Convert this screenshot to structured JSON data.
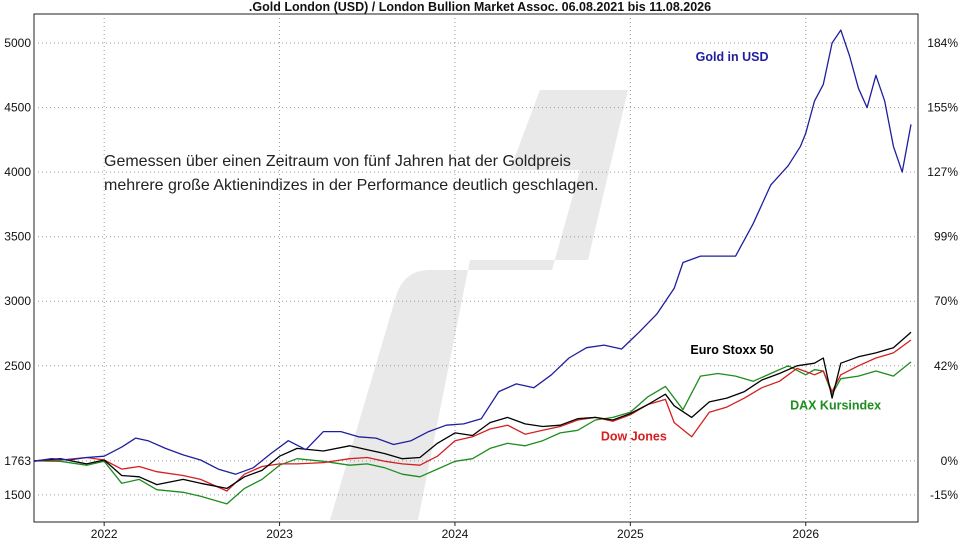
{
  "chart_data": {
    "type": "line",
    "title": ".Gold London (USD) / London Bullion Market Assoc. 06.08.2021 bis 11.08.2026",
    "annotation": [
      "Gemessen über einen Zeitraum von fünf Jahren hat der Goldpreis",
      "mehrere große Aktienindizes in der Performance deutlich geschlagen."
    ],
    "grid": true,
    "x_range": [
      2021.6,
      2026.64
    ],
    "x_ticks": [
      "2022",
      "2023",
      "2024",
      "2025",
      "2026"
    ],
    "y_left": {
      "range": [
        1290,
        5225
      ],
      "ticks": [
        "5000",
        "4500",
        "4000",
        "3500",
        "3000",
        "2500",
        "1763",
        "1500"
      ],
      "base": 1763
    },
    "y_right": {
      "ticks": [
        "184%",
        "155%",
        "127%",
        "99%",
        "70%",
        "42%",
        "0%",
        "-15%"
      ]
    },
    "colors": {
      "gold": "#1f1f9e",
      "euro": "#000000",
      "dow": "#d42020",
      "dax": "#1e8c1e"
    },
    "series": [
      {
        "name": "Gold in USD",
        "x": [
          2021.6,
          2021.7,
          2021.8,
          2021.9,
          2022.0,
          2022.1,
          2022.18,
          2022.25,
          2022.35,
          2022.45,
          2022.55,
          2022.65,
          2022.75,
          2022.85,
          2022.95,
          2023.05,
          2023.15,
          2023.25,
          2023.35,
          2023.45,
          2023.55,
          2023.65,
          2023.75,
          2023.85,
          2023.95,
          2024.05,
          2024.15,
          2024.25,
          2024.35,
          2024.45,
          2024.55,
          2024.65,
          2024.75,
          2024.85,
          2024.95,
          2025.05,
          2025.15,
          2025.25,
          2025.3,
          2025.4,
          2025.5,
          2025.6,
          2025.7,
          2025.8,
          2025.9,
          2025.97,
          2026.0,
          2026.05,
          2026.1,
          2026.15,
          2026.2,
          2026.25,
          2026.3,
          2026.35,
          2026.4,
          2026.45,
          2026.5,
          2026.55,
          2026.6
        ],
        "values": [
          1760,
          1780,
          1770,
          1790,
          1800,
          1870,
          1940,
          1920,
          1860,
          1810,
          1770,
          1700,
          1660,
          1710,
          1820,
          1920,
          1850,
          1990,
          1990,
          1950,
          1940,
          1890,
          1920,
          1990,
          2040,
          2050,
          2090,
          2300,
          2360,
          2330,
          2430,
          2560,
          2640,
          2660,
          2630,
          2760,
          2900,
          3100,
          3300,
          3350,
          3350,
          3350,
          3600,
          3900,
          4050,
          4200,
          4300,
          4550,
          4680,
          5000,
          5100,
          4900,
          4650,
          4500,
          4750,
          4550,
          4200,
          4000,
          4370
        ]
      },
      {
        "name": "Euro Stoxx 50",
        "x": [
          2021.6,
          2021.75,
          2021.9,
          2022.0,
          2022.1,
          2022.2,
          2022.3,
          2022.45,
          2022.55,
          2022.7,
          2022.8,
          2022.9,
          2023.0,
          2023.1,
          2023.25,
          2023.4,
          2023.5,
          2023.6,
          2023.7,
          2023.8,
          2023.9,
          2024.0,
          2024.1,
          2024.2,
          2024.3,
          2024.4,
          2024.5,
          2024.6,
          2024.7,
          2024.8,
          2024.9,
          2025.0,
          2025.1,
          2025.2,
          2025.25,
          2025.35,
          2025.45,
          2025.55,
          2025.65,
          2025.75,
          2025.85,
          2025.95,
          2026.05,
          2026.1,
          2026.15,
          2026.2,
          2026.3,
          2026.4,
          2026.5,
          2026.6
        ],
        "values": [
          1763,
          1780,
          1740,
          1770,
          1650,
          1640,
          1580,
          1620,
          1590,
          1550,
          1640,
          1690,
          1800,
          1860,
          1840,
          1880,
          1850,
          1820,
          1780,
          1790,
          1900,
          1980,
          1960,
          2060,
          2100,
          2050,
          2030,
          2040,
          2090,
          2100,
          2080,
          2130,
          2200,
          2280,
          2190,
          2100,
          2220,
          2250,
          2300,
          2390,
          2440,
          2500,
          2520,
          2560,
          2250,
          2520,
          2570,
          2600,
          2640,
          2760
        ]
      },
      {
        "name": "Dow Jones",
        "x": [
          2021.6,
          2021.75,
          2021.9,
          2022.0,
          2022.1,
          2022.2,
          2022.3,
          2022.45,
          2022.55,
          2022.7,
          2022.8,
          2022.9,
          2023.0,
          2023.1,
          2023.25,
          2023.4,
          2023.5,
          2023.6,
          2023.7,
          2023.8,
          2023.9,
          2024.0,
          2024.1,
          2024.2,
          2024.3,
          2024.4,
          2024.5,
          2024.6,
          2024.7,
          2024.8,
          2024.9,
          2025.0,
          2025.1,
          2025.2,
          2025.25,
          2025.35,
          2025.45,
          2025.55,
          2025.65,
          2025.75,
          2025.85,
          2025.95,
          2026.05,
          2026.1,
          2026.15,
          2026.2,
          2026.3,
          2026.4,
          2026.5,
          2026.6
        ],
        "values": [
          1763,
          1770,
          1790,
          1770,
          1700,
          1720,
          1680,
          1650,
          1620,
          1530,
          1660,
          1720,
          1740,
          1740,
          1750,
          1780,
          1790,
          1760,
          1740,
          1730,
          1800,
          1920,
          1950,
          2010,
          2040,
          1970,
          2000,
          2030,
          2080,
          2100,
          2070,
          2120,
          2200,
          2240,
          2060,
          1950,
          2140,
          2180,
          2250,
          2330,
          2380,
          2480,
          2430,
          2460,
          2300,
          2430,
          2500,
          2560,
          2600,
          2700
        ]
      },
      {
        "name": "DAX Kursindex",
        "x": [
          2021.6,
          2021.75,
          2021.9,
          2022.0,
          2022.1,
          2022.2,
          2022.3,
          2022.45,
          2022.55,
          2022.7,
          2022.8,
          2022.9,
          2023.0,
          2023.1,
          2023.25,
          2023.4,
          2023.5,
          2023.6,
          2023.7,
          2023.8,
          2023.9,
          2024.0,
          2024.1,
          2024.2,
          2024.3,
          2024.4,
          2024.5,
          2024.6,
          2024.7,
          2024.8,
          2024.9,
          2025.0,
          2025.1,
          2025.2,
          2025.3,
          2025.4,
          2025.5,
          2025.6,
          2025.7,
          2025.8,
          2025.9,
          2026.0,
          2026.05,
          2026.1,
          2026.15,
          2026.2,
          2026.3,
          2026.4,
          2026.5,
          2026.6
        ],
        "values": [
          1763,
          1760,
          1730,
          1760,
          1590,
          1620,
          1540,
          1520,
          1490,
          1430,
          1550,
          1620,
          1730,
          1780,
          1760,
          1730,
          1740,
          1710,
          1660,
          1640,
          1700,
          1760,
          1780,
          1860,
          1900,
          1880,
          1920,
          1980,
          2000,
          2080,
          2100,
          2140,
          2260,
          2340,
          2160,
          2420,
          2440,
          2420,
          2380,
          2440,
          2500,
          2430,
          2470,
          2460,
          2280,
          2400,
          2420,
          2460,
          2420,
          2530
        ]
      }
    ]
  }
}
